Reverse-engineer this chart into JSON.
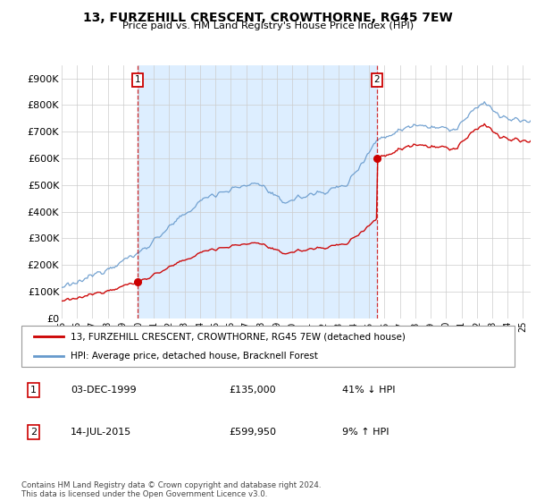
{
  "title": "13, FURZEHILL CRESCENT, CROWTHORNE, RG45 7EW",
  "subtitle": "Price paid vs. HM Land Registry's House Price Index (HPI)",
  "legend_line1": "13, FURZEHILL CRESCENT, CROWTHORNE, RG45 7EW (detached house)",
  "legend_line2": "HPI: Average price, detached house, Bracknell Forest",
  "footnote": "Contains HM Land Registry data © Crown copyright and database right 2024.\nThis data is licensed under the Open Government Licence v3.0.",
  "sale1_date": "03-DEC-1999",
  "sale1_price": 135000,
  "sale1_label": "41% ↓ HPI",
  "sale2_date": "14-JUL-2015",
  "sale2_price": 599950,
  "sale2_label": "9% ↑ HPI",
  "red_color": "#cc0000",
  "blue_color": "#6699cc",
  "shade_color": "#ddeeff",
  "grid_color": "#cccccc",
  "background_color": "#ffffff",
  "ylim": [
    0,
    950000
  ],
  "yticks": [
    0,
    100000,
    200000,
    300000,
    400000,
    500000,
    600000,
    700000,
    800000,
    900000
  ],
  "ytick_labels": [
    "£0",
    "£100K",
    "£200K",
    "£300K",
    "£400K",
    "£500K",
    "£600K",
    "£700K",
    "£800K",
    "£900K"
  ]
}
